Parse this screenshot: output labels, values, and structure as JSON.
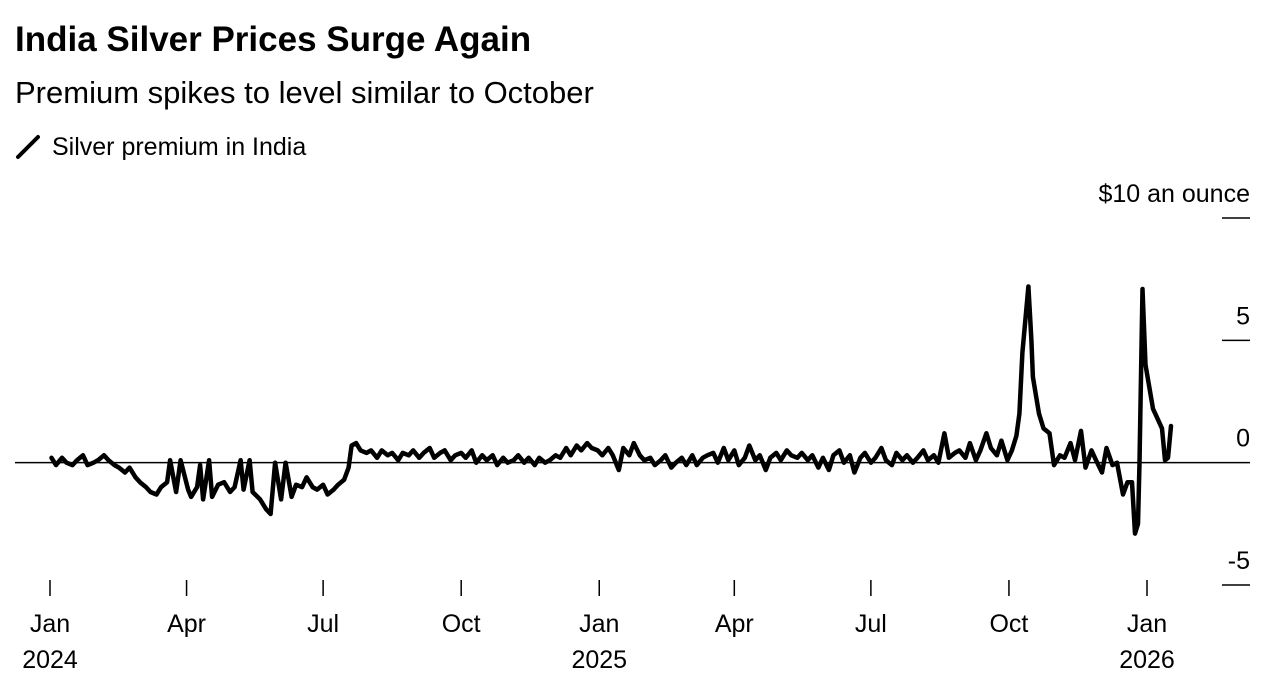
{
  "chart_data": {
    "type": "line",
    "title": "India Silver Prices Surge Again",
    "subtitle": "Premium spikes to level similar to October",
    "x": [
      "2024-01-02",
      "2024-01-05",
      "2024-01-09",
      "2024-01-12",
      "2024-01-16",
      "2024-01-19",
      "2024-01-23",
      "2024-01-26",
      "2024-01-30",
      "2024-02-02",
      "2024-02-06",
      "2024-02-09",
      "2024-02-13",
      "2024-02-16",
      "2024-02-20",
      "2024-02-23",
      "2024-02-27",
      "2024-03-01",
      "2024-03-05",
      "2024-03-08",
      "2024-03-12",
      "2024-03-15",
      "2024-03-19",
      "2024-03-21",
      "2024-03-25",
      "2024-03-28",
      "2024-04-02",
      "2024-04-04",
      "2024-04-08",
      "2024-04-10",
      "2024-04-12",
      "2024-04-16",
      "2024-04-18",
      "2024-04-22",
      "2024-04-26",
      "2024-04-30",
      "2024-05-03",
      "2024-05-07",
      "2024-05-09",
      "2024-05-13",
      "2024-05-15",
      "2024-05-20",
      "2024-05-24",
      "2024-05-27",
      "2024-05-30",
      "2024-06-03",
      "2024-06-06",
      "2024-06-10",
      "2024-06-13",
      "2024-06-17",
      "2024-06-20",
      "2024-06-24",
      "2024-06-27",
      "2024-07-01",
      "2024-07-04",
      "2024-07-08",
      "2024-07-11",
      "2024-07-15",
      "2024-07-18",
      "2024-07-20",
      "2024-07-23",
      "2024-07-26",
      "2024-07-30",
      "2024-08-02",
      "2024-08-06",
      "2024-08-09",
      "2024-08-13",
      "2024-08-16",
      "2024-08-20",
      "2024-08-23",
      "2024-08-27",
      "2024-08-30",
      "2024-09-03",
      "2024-09-06",
      "2024-09-10",
      "2024-09-13",
      "2024-09-17",
      "2024-09-20",
      "2024-09-24",
      "2024-09-27",
      "2024-10-01",
      "2024-10-04",
      "2024-10-08",
      "2024-10-11",
      "2024-10-15",
      "2024-10-18",
      "2024-10-22",
      "2024-10-25",
      "2024-10-29",
      "2024-11-01",
      "2024-11-05",
      "2024-11-08",
      "2024-11-12",
      "2024-11-15",
      "2024-11-19",
      "2024-11-22",
      "2024-11-26",
      "2024-11-29",
      "2024-12-03",
      "2024-12-06",
      "2024-12-10",
      "2024-12-13",
      "2024-12-17",
      "2024-12-20",
      "2024-12-24",
      "2024-12-27",
      "2024-12-31",
      "2025-01-03",
      "2025-01-07",
      "2025-01-10",
      "2025-01-14",
      "2025-01-17",
      "2025-01-21",
      "2025-01-24",
      "2025-01-28",
      "2025-01-31",
      "2025-02-04",
      "2025-02-07",
      "2025-02-11",
      "2025-02-14",
      "2025-02-18",
      "2025-02-21",
      "2025-02-25",
      "2025-02-28",
      "2025-03-04",
      "2025-03-07",
      "2025-03-11",
      "2025-03-14",
      "2025-03-18",
      "2025-03-21",
      "2025-03-25",
      "2025-03-28",
      "2025-04-01",
      "2025-04-04",
      "2025-04-08",
      "2025-04-11",
      "2025-04-15",
      "2025-04-18",
      "2025-04-22",
      "2025-04-25",
      "2025-04-29",
      "2025-05-02",
      "2025-05-06",
      "2025-05-09",
      "2025-05-13",
      "2025-05-16",
      "2025-05-20",
      "2025-05-23",
      "2025-05-27",
      "2025-05-30",
      "2025-06-03",
      "2025-06-06",
      "2025-06-10",
      "2025-06-13",
      "2025-06-17",
      "2025-06-20",
      "2025-06-24",
      "2025-06-27",
      "2025-07-01",
      "2025-07-04",
      "2025-07-08",
      "2025-07-11",
      "2025-07-15",
      "2025-07-18",
      "2025-07-22",
      "2025-07-25",
      "2025-07-29",
      "2025-08-01",
      "2025-08-05",
      "2025-08-08",
      "2025-08-12",
      "2025-08-15",
      "2025-08-19",
      "2025-08-22",
      "2025-08-26",
      "2025-08-29",
      "2025-09-02",
      "2025-09-05",
      "2025-09-09",
      "2025-09-12",
      "2025-09-16",
      "2025-09-19",
      "2025-09-23",
      "2025-09-26",
      "2025-09-30",
      "2025-10-03",
      "2025-10-06",
      "2025-10-08",
      "2025-10-10",
      "2025-10-14",
      "2025-10-16",
      "2025-10-17",
      "2025-10-21",
      "2025-10-24",
      "2025-10-28",
      "2025-10-31",
      "2025-11-04",
      "2025-11-07",
      "2025-11-11",
      "2025-11-14",
      "2025-11-18",
      "2025-11-21",
      "2025-11-25",
      "2025-11-28",
      "2025-12-02",
      "2025-12-05",
      "2025-12-09",
      "2025-12-12",
      "2025-12-16",
      "2025-12-19",
      "2025-12-22",
      "2025-12-24",
      "2025-12-26",
      "2025-12-27",
      "2025-12-29",
      "2025-12-31",
      "2026-01-05",
      "2026-01-08",
      "2026-01-11",
      "2026-01-13",
      "2026-01-15",
      "2026-01-17"
    ],
    "series": [
      {
        "name": "Silver premium in India",
        "color": "#000000",
        "values": [
          0.2,
          -0.1,
          0.2,
          0,
          -0.1,
          0.1,
          0.3,
          -0.1,
          0,
          0.1,
          0.3,
          0.1,
          -0.1,
          -0.2,
          -0.4,
          -0.2,
          -0.6,
          -0.8,
          -1,
          -1.2,
          -1.3,
          -1.0,
          -0.8,
          0.1,
          -1.2,
          0.1,
          -1.1,
          -1.4,
          -1.0,
          -0.1,
          -1.5,
          0.1,
          -1.4,
          -0.9,
          -0.8,
          -1.2,
          -1.0,
          0.1,
          -1.1,
          0.1,
          -1.2,
          -1.5,
          -1.9,
          -2.1,
          0.0,
          -1.5,
          0,
          -1.4,
          -0.9,
          -1.0,
          -0.6,
          -1.0,
          -1.1,
          -0.9,
          -1.3,
          -1.1,
          -0.9,
          -0.7,
          -0.2,
          0.7,
          0.8,
          0.5,
          0.4,
          0.5,
          0.2,
          0.5,
          0.3,
          0.4,
          0.1,
          0.4,
          0.3,
          0.5,
          0.2,
          0.4,
          0.6,
          0.2,
          0.4,
          0.5,
          0.1,
          0.3,
          0.4,
          0.2,
          0.5,
          0.0,
          0.3,
          0.1,
          0.3,
          -0.1,
          0.2,
          0.0,
          0.1,
          0.3,
          0.0,
          0.2,
          -0.1,
          0.2,
          0.0,
          0.1,
          0.3,
          0.2,
          0.6,
          0.3,
          0.7,
          0.5,
          0.8,
          0.6,
          0.5,
          0.3,
          0.6,
          0.3,
          -0.3,
          0.6,
          0.3,
          0.8,
          0.3,
          0.1,
          0.2,
          -0.1,
          0.1,
          0.3,
          -0.2,
          0.0,
          0.2,
          -0.1,
          0.3,
          -0.1,
          0.2,
          0.3,
          0.4,
          0.0,
          0.6,
          0.1,
          0.5,
          -0.1,
          0.2,
          0.7,
          0.1,
          0.3,
          -0.3,
          0.2,
          0.4,
          0.1,
          0.5,
          0.3,
          0.2,
          0.4,
          0.1,
          0.3,
          -0.2,
          0.2,
          -0.3,
          0.3,
          0.5,
          0.0,
          0.3,
          -0.4,
          0.2,
          0.4,
          0.0,
          0.2,
          0.6,
          0.1,
          -0.1,
          0.4,
          0.1,
          0.3,
          0.0,
          0.2,
          0.5,
          0.1,
          0.3,
          0.0,
          1.2,
          0.2,
          0.4,
          0.5,
          0.2,
          0.8,
          0.1,
          0.5,
          1.2,
          0.6,
          0.3,
          0.9,
          0.1,
          0.5,
          1.1,
          2.0,
          4.5,
          7.2,
          5.0,
          3.5,
          2.0,
          1.4,
          1.2,
          -0.1,
          0.3,
          0.2,
          0.8,
          0.1,
          1.3,
          -0.2,
          0.5,
          0.1,
          -0.4,
          0.6,
          -0.1,
          0.0,
          -1.3,
          -0.8,
          -0.8,
          -2.9,
          -2.5,
          0.0,
          7.1,
          4.0,
          2.2,
          1.8,
          1.4,
          0.1,
          0.2,
          1.5
        ]
      }
    ],
    "xticks": [
      {
        "value": "2024-01",
        "label": "Jan"
      },
      {
        "value": "2024-04",
        "label": "Apr"
      },
      {
        "value": "2024-07",
        "label": "Jul"
      },
      {
        "value": "2024-10",
        "label": "Oct"
      },
      {
        "value": "2025-01",
        "label": "Jan"
      },
      {
        "value": "2025-04",
        "label": "Apr"
      },
      {
        "value": "2025-07",
        "label": "Jul"
      },
      {
        "value": "2025-10",
        "label": "Oct"
      },
      {
        "value": "2026-01",
        "label": "Jan"
      }
    ],
    "xtick_years": [
      {
        "value": "2024-01",
        "label": "2024"
      },
      {
        "value": "2025-01",
        "label": "2025"
      },
      {
        "value": "2026-01",
        "label": "2026"
      }
    ],
    "ylim": [
      -5,
      10
    ],
    "yticks": [
      {
        "value": 10,
        "label": "$10 an ounce"
      },
      5,
      0,
      -5
    ],
    "zero_line": true
  }
}
